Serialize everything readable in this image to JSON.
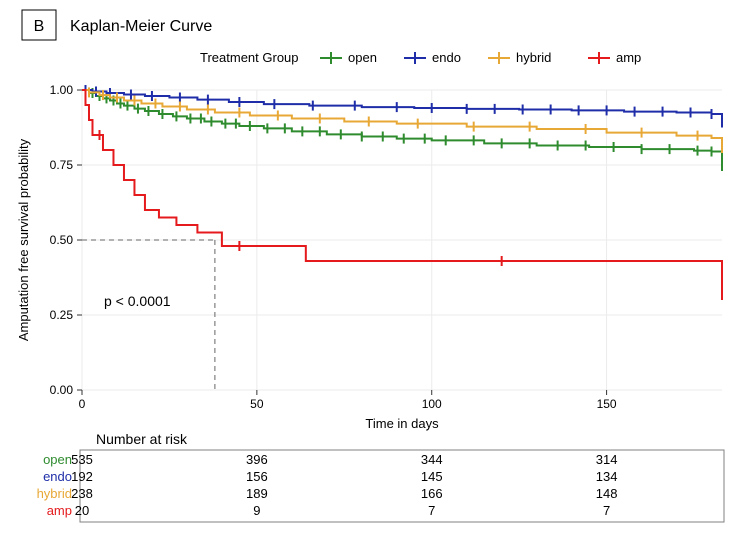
{
  "panel_letter": "B",
  "title": "Kaplan-Meier Curve",
  "legend_title": "Treatment Group",
  "pvalue_label": "p < 0.0001",
  "x_axis_label": "Time in days",
  "y_axis_label": "Amputation free survival probability",
  "risk_table_title": "Number at risk",
  "background_color": "#ffffff",
  "panel_bg": "#ffffff",
  "panel_border": "#000000",
  "grid_color": "#ebebeb",
  "median_line_color": "#666666",
  "tick_color": "#333333",
  "text_color": "#000000",
  "title_fontsize": 16,
  "legend_fontsize": 13,
  "axis_label_fontsize": 13,
  "tick_fontsize": 12,
  "pvalue_fontsize": 14,
  "risk_title_fontsize": 14,
  "risk_fontsize": 13,
  "line_width": 2,
  "censor_tick_halflen": 5,
  "chart": {
    "type": "kaplan-meier",
    "xlim": [
      0,
      183
    ],
    "ylim": [
      0.0,
      1.0
    ],
    "xticks": [
      0,
      50,
      100,
      150
    ],
    "yticks": [
      0.0,
      0.25,
      0.5,
      0.75,
      1.0
    ],
    "median_ref": {
      "y": 0.5,
      "x_at_median": 38
    },
    "series": [
      {
        "key": "open",
        "label": "open",
        "color": "#2e8b2e",
        "steps": [
          [
            0,
            1.0
          ],
          [
            2,
            0.99
          ],
          [
            4,
            0.98
          ],
          [
            6,
            0.972
          ],
          [
            8,
            0.965
          ],
          [
            10,
            0.955
          ],
          [
            12,
            0.948
          ],
          [
            15,
            0.938
          ],
          [
            18,
            0.93
          ],
          [
            22,
            0.92
          ],
          [
            26,
            0.912
          ],
          [
            30,
            0.905
          ],
          [
            35,
            0.895
          ],
          [
            40,
            0.888
          ],
          [
            45,
            0.88
          ],
          [
            52,
            0.872
          ],
          [
            60,
            0.862
          ],
          [
            70,
            0.852
          ],
          [
            80,
            0.845
          ],
          [
            90,
            0.838
          ],
          [
            100,
            0.832
          ],
          [
            115,
            0.822
          ],
          [
            130,
            0.815
          ],
          [
            145,
            0.81
          ],
          [
            160,
            0.803
          ],
          [
            175,
            0.798
          ],
          [
            180,
            0.795
          ],
          [
            183,
            0.73
          ]
        ],
        "censors": [
          3,
          5,
          7,
          9,
          11,
          13,
          16,
          19,
          23,
          27,
          31,
          34,
          37,
          41,
          44,
          48,
          53,
          58,
          63,
          68,
          74,
          80,
          86,
          92,
          98,
          104,
          112,
          120,
          128,
          136,
          144,
          152,
          160,
          168,
          176,
          180
        ]
      },
      {
        "key": "endo",
        "label": "endo",
        "color": "#1f2ea8",
        "steps": [
          [
            0,
            1.0
          ],
          [
            3,
            0.995
          ],
          [
            7,
            0.99
          ],
          [
            12,
            0.985
          ],
          [
            18,
            0.98
          ],
          [
            25,
            0.975
          ],
          [
            33,
            0.968
          ],
          [
            42,
            0.96
          ],
          [
            52,
            0.953
          ],
          [
            65,
            0.948
          ],
          [
            80,
            0.943
          ],
          [
            95,
            0.94
          ],
          [
            110,
            0.937
          ],
          [
            125,
            0.935
          ],
          [
            140,
            0.932
          ],
          [
            155,
            0.928
          ],
          [
            170,
            0.925
          ],
          [
            180,
            0.92
          ],
          [
            183,
            0.875
          ]
        ],
        "censors": [
          1,
          4,
          8,
          14,
          20,
          28,
          36,
          45,
          55,
          66,
          78,
          90,
          100,
          110,
          118,
          126,
          134,
          142,
          150,
          158,
          166,
          174,
          180
        ]
      },
      {
        "key": "hybrid",
        "label": "hybrid",
        "color": "#e8a836",
        "steps": [
          [
            0,
            1.0
          ],
          [
            2,
            0.992
          ],
          [
            5,
            0.983
          ],
          [
            8,
            0.975
          ],
          [
            12,
            0.965
          ],
          [
            17,
            0.955
          ],
          [
            23,
            0.945
          ],
          [
            30,
            0.935
          ],
          [
            38,
            0.925
          ],
          [
            48,
            0.915
          ],
          [
            60,
            0.905
          ],
          [
            75,
            0.895
          ],
          [
            90,
            0.888
          ],
          [
            110,
            0.878
          ],
          [
            130,
            0.87
          ],
          [
            150,
            0.858
          ],
          [
            170,
            0.848
          ],
          [
            180,
            0.84
          ],
          [
            183,
            0.79
          ]
        ],
        "censors": [
          2,
          6,
          10,
          15,
          21,
          28,
          36,
          45,
          56,
          68,
          82,
          96,
          112,
          128,
          144,
          160,
          176
        ]
      },
      {
        "key": "amp",
        "label": "amp",
        "color": "#e41a1c",
        "steps": [
          [
            0,
            1.0
          ],
          [
            1,
            0.95
          ],
          [
            2,
            0.9
          ],
          [
            3,
            0.85
          ],
          [
            6,
            0.8
          ],
          [
            9,
            0.75
          ],
          [
            12,
            0.7
          ],
          [
            15,
            0.65
          ],
          [
            18,
            0.6
          ],
          [
            22,
            0.575
          ],
          [
            27,
            0.55
          ],
          [
            33,
            0.525
          ],
          [
            38,
            0.525
          ],
          [
            40,
            0.48
          ],
          [
            62,
            0.48
          ],
          [
            64,
            0.43
          ],
          [
            180,
            0.43
          ],
          [
            183,
            0.3
          ]
        ],
        "censors": [
          5,
          45,
          120
        ]
      }
    ]
  },
  "risk_table": {
    "x_positions": [
      0,
      50,
      100,
      150
    ],
    "rows": [
      {
        "key": "open",
        "label": "open",
        "color": "#2e8b2e",
        "values": [
          "535",
          "396",
          "344",
          "314"
        ]
      },
      {
        "key": "endo",
        "label": "endo",
        "color": "#1f2ea8",
        "values": [
          "192",
          "156",
          "145",
          "134"
        ]
      },
      {
        "key": "hybrid",
        "label": "hybrid",
        "color": "#e8a836",
        "values": [
          "238",
          "189",
          "166",
          "148"
        ]
      },
      {
        "key": "amp",
        "label": "amp",
        "color": "#e41a1c",
        "values": [
          "20",
          "9",
          "7",
          "7"
        ]
      }
    ]
  }
}
